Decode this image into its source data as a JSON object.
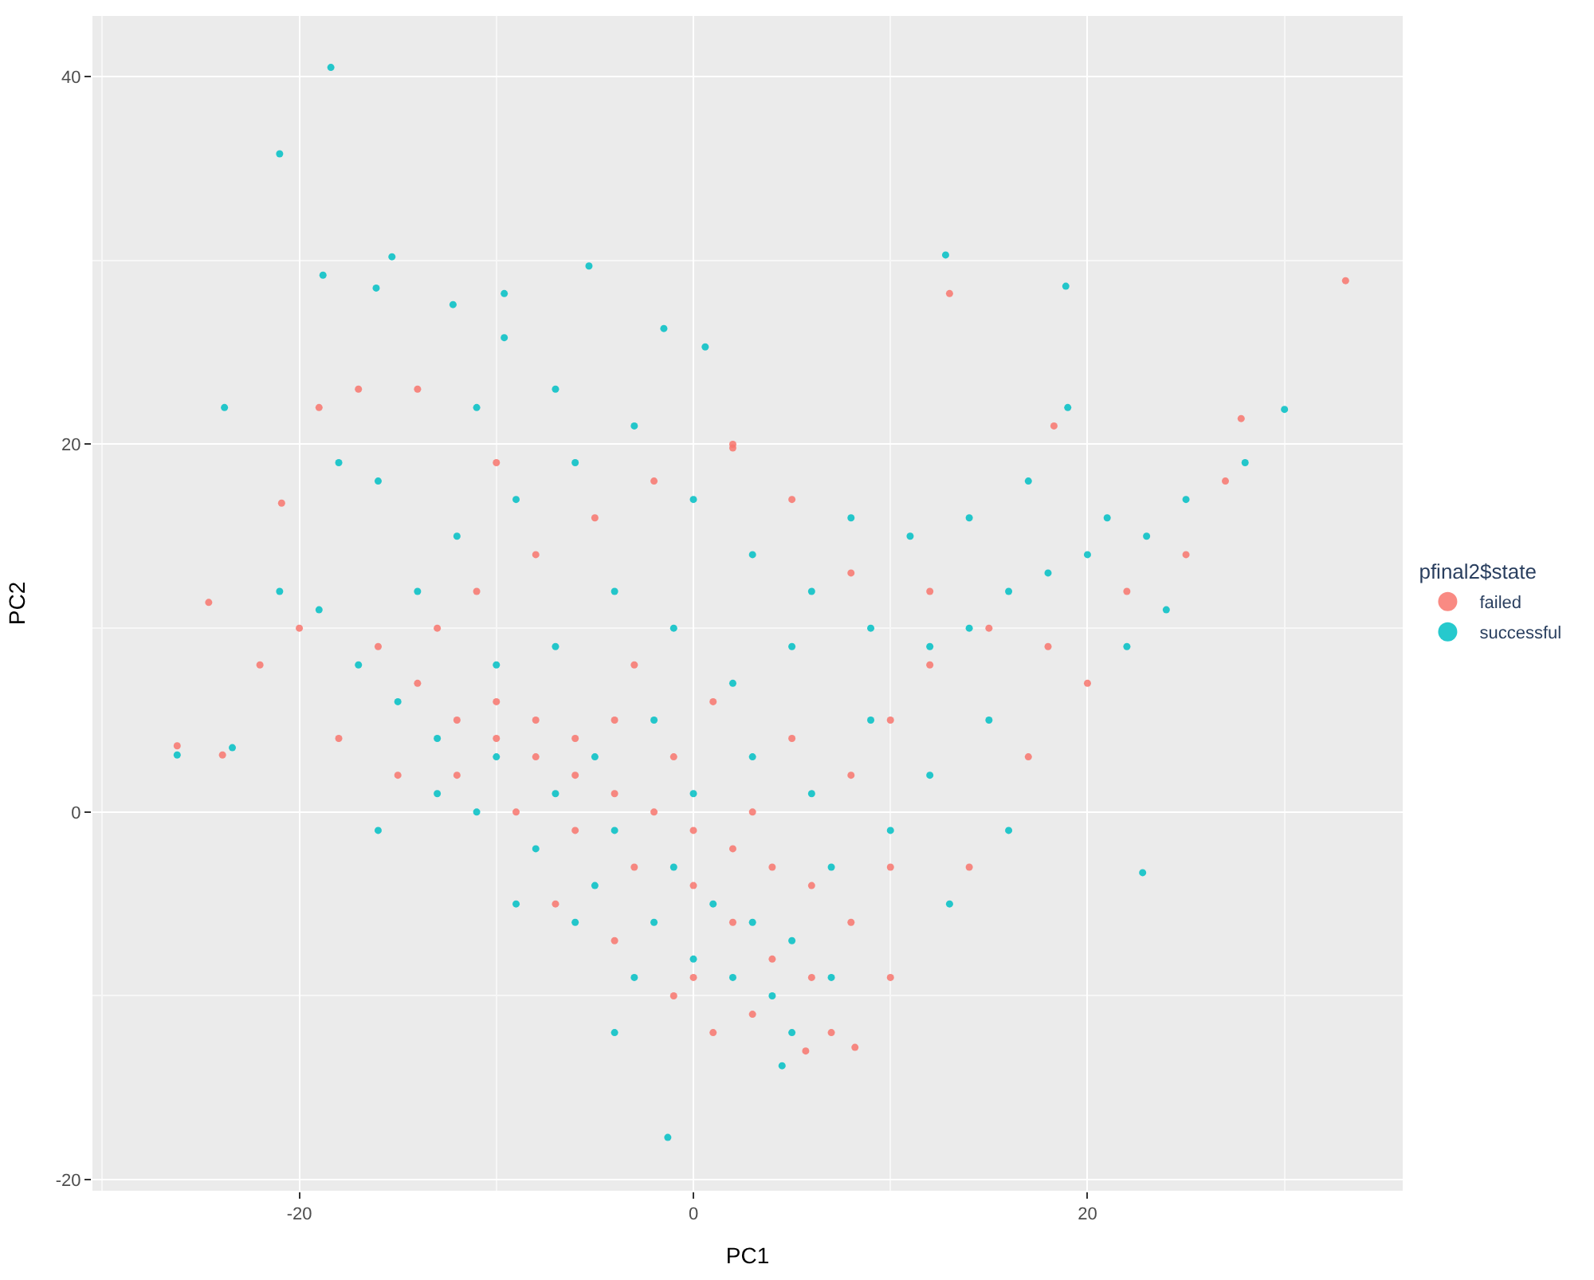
{
  "chart_data": {
    "type": "scatter",
    "xlabel": "PC1",
    "ylabel": "PC2",
    "legend_title": "pfinal2$state",
    "xlim": [
      -30.5,
      36
    ],
    "ylim": [
      -20.6,
      43.3
    ],
    "xticks": [
      -20,
      0,
      20
    ],
    "yticks": [
      -20,
      0,
      20,
      40
    ],
    "grid": true,
    "legend": "right",
    "marker": "circle",
    "series": [
      {
        "name": "failed",
        "color": "#f8766d",
        "x": [
          -12,
          -10,
          -8,
          -6,
          -4,
          -2,
          0,
          2,
          4,
          6,
          -10,
          -8,
          -6,
          -12,
          -9,
          -6,
          -3,
          0,
          2,
          4,
          6,
          8,
          10,
          8,
          10,
          12,
          -14,
          -16,
          -13,
          -11,
          -8,
          -5,
          -2,
          2,
          5,
          8,
          12,
          15,
          18,
          20,
          -18,
          -15,
          -7,
          -4,
          0,
          3,
          7,
          1,
          -1,
          10,
          14,
          17,
          22,
          25,
          27,
          -20,
          -22,
          -19,
          -17,
          -14,
          -10,
          -3,
          1,
          5,
          3,
          -1,
          -4,
          33.1,
          27.8,
          13.0,
          2.0,
          18.3,
          -20.9,
          -24.6,
          -26.2,
          -23.9,
          5.7,
          8.2
        ],
        "values": [
          5,
          4,
          3,
          2,
          1,
          0,
          -1,
          -2,
          -3,
          -4,
          6,
          5,
          4,
          2,
          0,
          -1,
          -3,
          -4,
          -6,
          -8,
          -9,
          -6,
          -3,
          2,
          5,
          8,
          7,
          9,
          10,
          12,
          14,
          16,
          18,
          20,
          17,
          13,
          12,
          10,
          9,
          7,
          4,
          2,
          -5,
          -7,
          -9,
          -11,
          -12,
          -12,
          -10,
          -9,
          -3,
          3,
          12,
          14,
          18,
          10,
          8,
          22,
          23,
          23,
          19,
          8,
          6,
          4,
          0,
          3,
          5,
          28.9,
          21.4,
          28.2,
          19.8,
          21.0,
          16.8,
          11.4,
          3.6,
          3.1,
          -13.0,
          -12.8
        ]
      },
      {
        "name": "successful",
        "color": "#00bfc4",
        "x": [
          -10,
          -7,
          -4,
          -1,
          1,
          3,
          5,
          0,
          2,
          4,
          -2,
          -5,
          -8,
          -11,
          -13,
          -15,
          -17,
          -19,
          -14,
          -12,
          -9,
          -6,
          -3,
          0,
          3,
          6,
          9,
          12,
          14,
          16,
          18,
          20,
          21,
          23,
          25,
          28,
          19,
          17,
          14,
          11,
          8,
          5,
          2,
          -1,
          -4,
          -7,
          -10,
          -13,
          -16,
          -9,
          -6,
          -3,
          7,
          10,
          12,
          15,
          9,
          6,
          3,
          0,
          -2,
          -5,
          13,
          16,
          -21,
          -18,
          -16,
          -11,
          -7,
          22,
          24,
          7,
          5,
          -4,
          -18.4,
          -21.0,
          -23.8,
          -26.2,
          -15.3,
          -5.3,
          12.8,
          30.0,
          18.9,
          0.6,
          -1.5,
          -1.3,
          4.5,
          22.8,
          -9.6,
          -9.6,
          -12.2,
          -16.1,
          -18.8,
          -23.4
        ],
        "values": [
          3,
          1,
          -1,
          -3,
          -5,
          -6,
          -7,
          -8,
          -9,
          -10,
          -6,
          -4,
          -2,
          0,
          4,
          6,
          8,
          11,
          12,
          15,
          17,
          19,
          21,
          17,
          14,
          12,
          10,
          9,
          10,
          12,
          13,
          14,
          16,
          15,
          17,
          19,
          22,
          18,
          16,
          15,
          16,
          9,
          7,
          10,
          12,
          9,
          8,
          1,
          -1,
          -5,
          -6,
          -9,
          -3,
          -1,
          2,
          5,
          5,
          1,
          3,
          1,
          5,
          3,
          -5,
          -1,
          12,
          19,
          18,
          22,
          23,
          9,
          11,
          -9,
          -12,
          -12,
          40.5,
          35.8,
          22.0,
          3.1,
          30.2,
          29.7,
          30.3,
          21.9,
          28.6,
          25.3,
          26.3,
          -17.7,
          -13.8,
          -3.3,
          28.2,
          25.8,
          27.6,
          28.5,
          29.2,
          3.5
        ]
      }
    ]
  }
}
